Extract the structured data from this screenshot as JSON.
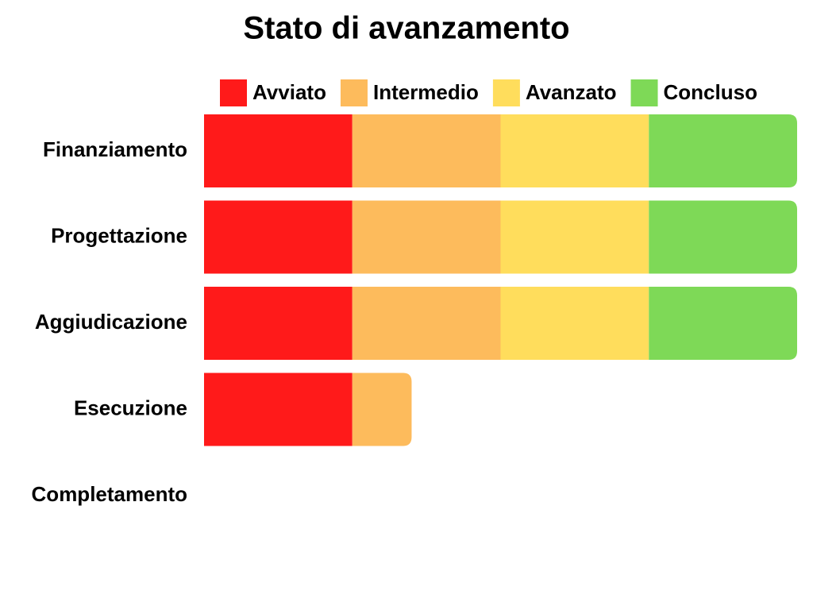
{
  "chart_data": {
    "type": "stacked-bar-horizontal",
    "title": "Stato di avanzamento",
    "categories": [
      "Finanziamento",
      "Progettazione",
      "Aggiudicazione",
      "Esecuzione",
      "Completamento"
    ],
    "series": [
      {
        "name": "Avviato",
        "color": "#ff1a1a",
        "values": [
          25,
          25,
          25,
          25,
          0
        ]
      },
      {
        "name": "Intermedio",
        "color": "#fdbb5c",
        "values": [
          25,
          25,
          25,
          10,
          0
        ]
      },
      {
        "name": "Avanzato",
        "color": "#ffdd5c",
        "values": [
          25,
          25,
          25,
          0,
          0
        ]
      },
      {
        "name": "Concluso",
        "color": "#7ed957",
        "values": [
          25,
          25,
          25,
          0,
          0
        ]
      }
    ],
    "xlim": [
      0,
      100
    ],
    "legend": "top"
  }
}
